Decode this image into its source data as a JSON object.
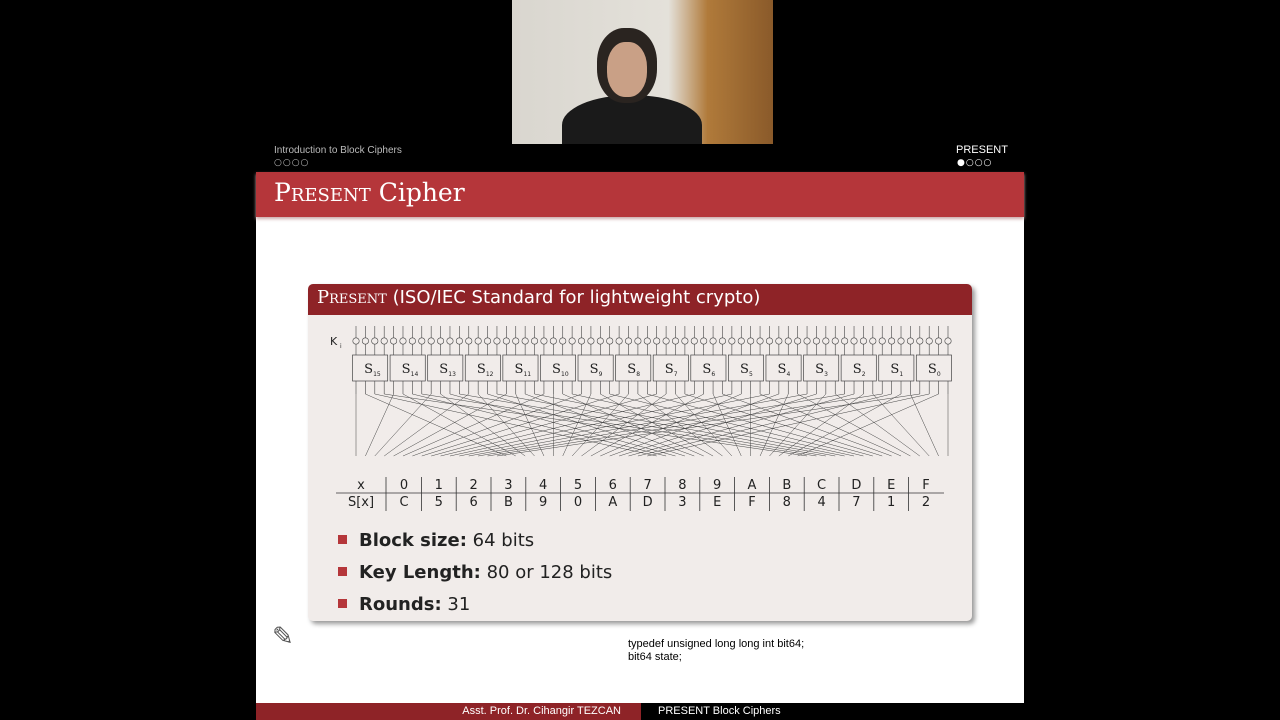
{
  "header": {
    "section": "Introduction to Block Ciphers",
    "section_dots": "○○○○",
    "subsection": "PRESENT",
    "subsection_dots": "●○○○"
  },
  "slide": {
    "title_sc": "Present",
    "title_rest": " Cipher",
    "block": {
      "title_sc": "Present",
      "title_rest": " (ISO/IEC Standard for lightweight crypto)"
    },
    "diagram": {
      "key_label": "K",
      "key_sub": "i",
      "sboxes": [
        "15",
        "14",
        "13",
        "12",
        "11",
        "10",
        "9",
        "8",
        "7",
        "6",
        "5",
        "4",
        "3",
        "2",
        "1",
        "0"
      ]
    },
    "sbox_table": {
      "row_labels": [
        "x",
        "S[x]"
      ],
      "x": [
        "0",
        "1",
        "2",
        "3",
        "4",
        "5",
        "6",
        "7",
        "8",
        "9",
        "A",
        "B",
        "C",
        "D",
        "E",
        "F"
      ],
      "sx": [
        "C",
        "5",
        "6",
        "B",
        "9",
        "0",
        "A",
        "D",
        "3",
        "E",
        "F",
        "8",
        "4",
        "7",
        "1",
        "2"
      ]
    },
    "bullets": [
      {
        "label": "Block size:",
        "value": " 64 bits"
      },
      {
        "label": "Key Length:",
        "value": " 80 or 128 bits"
      },
      {
        "label": "Rounds:",
        "value": " 31"
      }
    ],
    "code": [
      "typedef unsigned long long int bit64;",
      "bit64 state;"
    ]
  },
  "footer": {
    "author": "Asst. Prof. Dr. Cihangir TEZCAN",
    "title": "PRESENT Block Ciphers"
  },
  "colors": {
    "title_bar": "#b5363a",
    "block_header": "#8e2327",
    "block_bg": "#f1ecea"
  }
}
